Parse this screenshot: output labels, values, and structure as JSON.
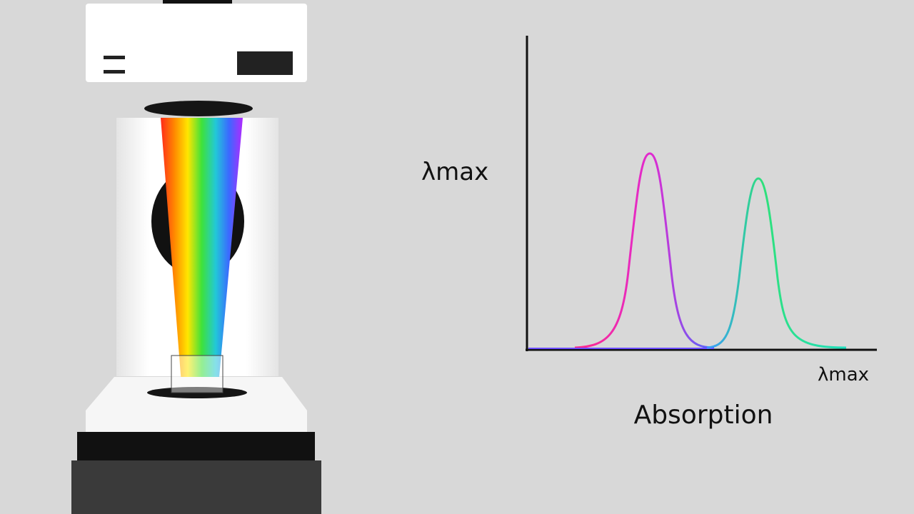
{
  "labels": {
    "y_axis": "λmax",
    "x_axis": "λmax",
    "caption": "Absorption"
  }
}
